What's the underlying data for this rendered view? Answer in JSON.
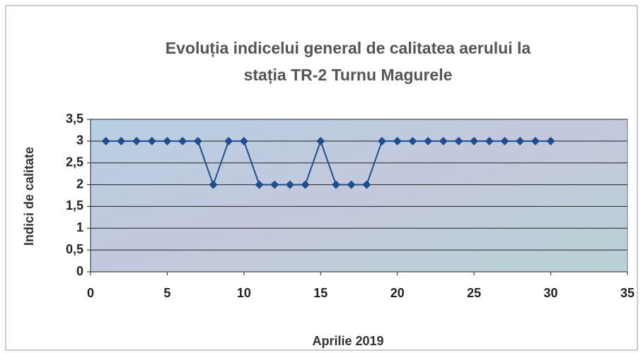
{
  "chart_data": {
    "type": "line",
    "title": [
      "Evoluția indicelui general de calitatea aerului la",
      "stația TR-2 Turnu Magurele"
    ],
    "xlabel": "Aprilie 2019",
    "ylabel": "Indici de calitate",
    "x": [
      1,
      2,
      3,
      4,
      5,
      6,
      7,
      8,
      9,
      10,
      11,
      12,
      13,
      14,
      15,
      16,
      17,
      18,
      19,
      20,
      21,
      22,
      23,
      24,
      25,
      26,
      27,
      28,
      29,
      30
    ],
    "values": [
      3,
      3,
      3,
      3,
      3,
      3,
      3,
      2,
      3,
      3,
      2,
      2,
      2,
      2,
      3,
      2,
      2,
      2,
      3,
      3,
      3,
      3,
      3,
      3,
      3,
      3,
      3,
      3,
      3,
      3
    ],
    "color": "#1f4e8c",
    "xlim": [
      0,
      35
    ],
    "xticks": [
      0,
      5,
      10,
      15,
      20,
      25,
      30,
      35
    ],
    "ylim": [
      0,
      3.5
    ],
    "yticks": [
      0,
      {
        "value": 0.5,
        "label": "0,5"
      },
      1,
      {
        "value": 1.5,
        "label": "1,5"
      },
      2,
      {
        "value": 2.5,
        "label": "2,5"
      },
      3,
      {
        "value": 3.5,
        "label": "3,5"
      }
    ],
    "grid": true
  }
}
